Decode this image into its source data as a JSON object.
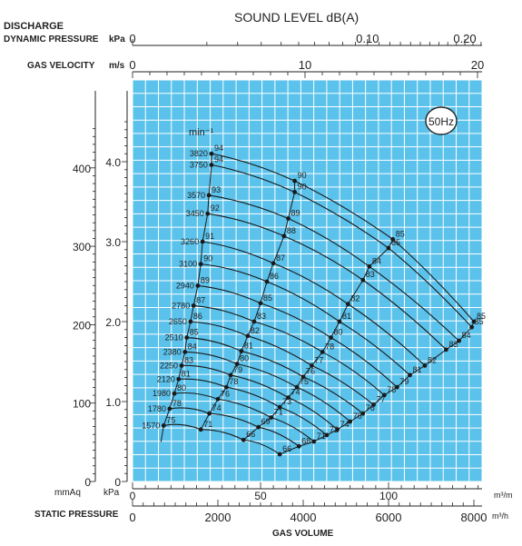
{
  "chart_data": {
    "type": "line",
    "title": "",
    "sound_level_axis": {
      "label": "SOUND LEVEL dB(A)"
    },
    "top_axes": {
      "discharge_label_line1": "DISCHARGE",
      "discharge_label_line2": "DYNAMIC PRESSURE",
      "discharge_unit": "kPa",
      "discharge_ticks": [
        "0",
        "0.10",
        "0.20"
      ],
      "gas_velocity_label": "GAS VELOCITY",
      "gas_velocity_unit": "m/s",
      "gas_velocity_ticks": [
        "0",
        "10",
        "20"
      ]
    },
    "frequency_badge": "50Hz",
    "speed_unit_label": "min⁻¹",
    "x_axis": {
      "label": "GAS VOLUME",
      "unit_m3h": "m³/h",
      "unit_m3m": "m³/m",
      "ticks_m3h": [
        "0",
        "2000",
        "4000",
        "6000",
        "8000"
      ],
      "ticks_m3m": [
        "0",
        "50",
        "100"
      ],
      "range": [
        0,
        8000
      ]
    },
    "y_axis": {
      "label": "STATIC PRESSURE",
      "unit_kpa": "kPa",
      "unit_mmaq": "mmAq",
      "ticks_kpa": [
        "0",
        "1.0",
        "2.0",
        "3.0",
        "4.0"
      ],
      "ticks_mmaq": [
        "0",
        "100",
        "200",
        "300",
        "400"
      ],
      "range_kpa": [
        0,
        4.5
      ]
    },
    "grid": true,
    "series": [
      {
        "name": "3820",
        "points": [
          [
            1850,
            4.1,
            "94"
          ],
          [
            3800,
            3.76,
            "90"
          ],
          [
            6100,
            3.03,
            "85"
          ],
          [
            8000,
            2.0,
            "85"
          ]
        ]
      },
      {
        "name": "3750",
        "points": [
          [
            1850,
            3.96,
            "94"
          ],
          [
            3800,
            3.62,
            "90"
          ],
          [
            6000,
            2.92,
            "85"
          ],
          [
            7950,
            1.93,
            "85"
          ]
        ]
      },
      {
        "name": "3570",
        "points": [
          [
            1790,
            3.58,
            "93"
          ],
          [
            3650,
            3.29,
            "89"
          ],
          [
            5550,
            2.69,
            "84"
          ],
          [
            7650,
            1.76,
            "84"
          ]
        ]
      },
      {
        "name": "3450",
        "points": [
          [
            1760,
            3.35,
            "92"
          ],
          [
            3550,
            3.07,
            "88"
          ],
          [
            5400,
            2.52,
            "83"
          ],
          [
            7350,
            1.65,
            "83"
          ]
        ]
      },
      {
        "name": "3260",
        "points": [
          [
            1640,
            3.0,
            "91"
          ],
          [
            3300,
            2.73,
            "87"
          ],
          [
            5050,
            2.22,
            "82"
          ],
          [
            6850,
            1.45,
            "82"
          ]
        ]
      },
      {
        "name": "3100",
        "points": [
          [
            1600,
            2.72,
            "90"
          ],
          [
            3150,
            2.5,
            "86"
          ],
          [
            4850,
            2.0,
            "81"
          ],
          [
            6500,
            1.33,
            "81"
          ]
        ]
      },
      {
        "name": "2940",
        "points": [
          [
            1530,
            2.45,
            "89"
          ],
          [
            3000,
            2.23,
            "85"
          ],
          [
            4650,
            1.8,
            "80"
          ],
          [
            6200,
            1.18,
            "79"
          ]
        ]
      },
      {
        "name": "2780",
        "points": [
          [
            1430,
            2.2,
            "87"
          ],
          [
            2850,
            2.0,
            "83"
          ],
          [
            4450,
            1.62,
            "78"
          ],
          [
            5900,
            1.08,
            "78"
          ]
        ]
      },
      {
        "name": "2650",
        "points": [
          [
            1360,
            2.0,
            "86"
          ],
          [
            2700,
            1.82,
            "82"
          ],
          [
            4200,
            1.45,
            "77"
          ],
          [
            5650,
            0.96,
            "77"
          ]
        ]
      },
      {
        "name": "2510",
        "points": [
          [
            1270,
            1.8,
            "85"
          ],
          [
            2550,
            1.63,
            "81"
          ],
          [
            4000,
            1.31,
            "76"
          ],
          [
            5400,
            0.85,
            "76"
          ]
        ]
      },
      {
        "name": "2380",
        "points": [
          [
            1230,
            1.62,
            "84"
          ],
          [
            2450,
            1.47,
            "80"
          ],
          [
            3850,
            1.18,
            "75"
          ],
          [
            5100,
            0.75,
            "75"
          ]
        ]
      },
      {
        "name": "2250",
        "points": [
          [
            1150,
            1.45,
            "83"
          ],
          [
            2300,
            1.33,
            "79"
          ],
          [
            3650,
            1.05,
            "74"
          ],
          [
            4800,
            0.65,
            "74"
          ]
        ]
      },
      {
        "name": "2120",
        "points": [
          [
            1080,
            1.28,
            "81"
          ],
          [
            2200,
            1.18,
            "78"
          ],
          [
            3450,
            0.93,
            "73"
          ],
          [
            4550,
            0.58,
            "72"
          ]
        ]
      },
      {
        "name": "1980",
        "points": [
          [
            980,
            1.1,
            "80"
          ],
          [
            2000,
            1.03,
            "76"
          ],
          [
            3250,
            0.8,
            "71"
          ],
          [
            4250,
            0.5,
            "71"
          ]
        ]
      },
      {
        "name": "1780",
        "points": [
          [
            870,
            0.91,
            "78"
          ],
          [
            1800,
            0.85,
            "74"
          ],
          [
            2950,
            0.68,
            "69"
          ],
          [
            3900,
            0.44,
            "68"
          ]
        ]
      },
      {
        "name": "1570",
        "points": [
          [
            730,
            0.7,
            "75"
          ],
          [
            1600,
            0.65,
            "71"
          ],
          [
            2600,
            0.52,
            "66"
          ],
          [
            3450,
            0.34,
            "66"
          ]
        ]
      }
    ]
  }
}
